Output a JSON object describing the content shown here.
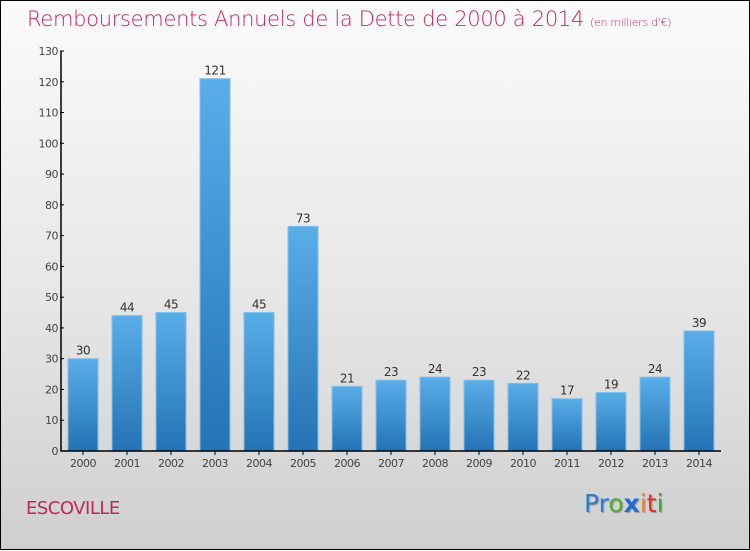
{
  "header": {
    "title": "Remboursements Annuels de la Dette de 2000 à 2014",
    "subtitle": "(en milliers d'€)"
  },
  "footer": {
    "city": "ESCOVILLE",
    "logo": [
      "P",
      "r",
      "o",
      "x",
      "i",
      "t",
      "i"
    ],
    "logo_colors": [
      "#2a7fd4",
      "#2a7fd4",
      "#4caf2a",
      "#1e6fd0",
      "#f08020",
      "#e03020",
      "#3aa83a"
    ]
  },
  "colors": {
    "title": "#c0285a",
    "bar_top": "#5aaee8",
    "bar_bottom": "#2473b5",
    "bar_edge": "#7cc0f0"
  },
  "chart_data": {
    "type": "bar",
    "title": "Remboursements Annuels de la Dette de 2000 à 2014",
    "subtitle": "(en milliers d'€)",
    "xlabel": "",
    "ylabel": "",
    "categories": [
      "2000",
      "2001",
      "2002",
      "2003",
      "2004",
      "2005",
      "2006",
      "2007",
      "2008",
      "2009",
      "2010",
      "2011",
      "2012",
      "2013",
      "2014"
    ],
    "values": [
      30,
      44,
      45,
      121,
      45,
      73,
      21,
      23,
      24,
      23,
      22,
      17,
      19,
      24,
      39
    ],
    "ylim": [
      0,
      130
    ],
    "yticks": [
      0,
      10,
      20,
      30,
      40,
      50,
      60,
      70,
      80,
      90,
      100,
      110,
      120,
      130
    ],
    "grid": false,
    "legend": "none"
  }
}
